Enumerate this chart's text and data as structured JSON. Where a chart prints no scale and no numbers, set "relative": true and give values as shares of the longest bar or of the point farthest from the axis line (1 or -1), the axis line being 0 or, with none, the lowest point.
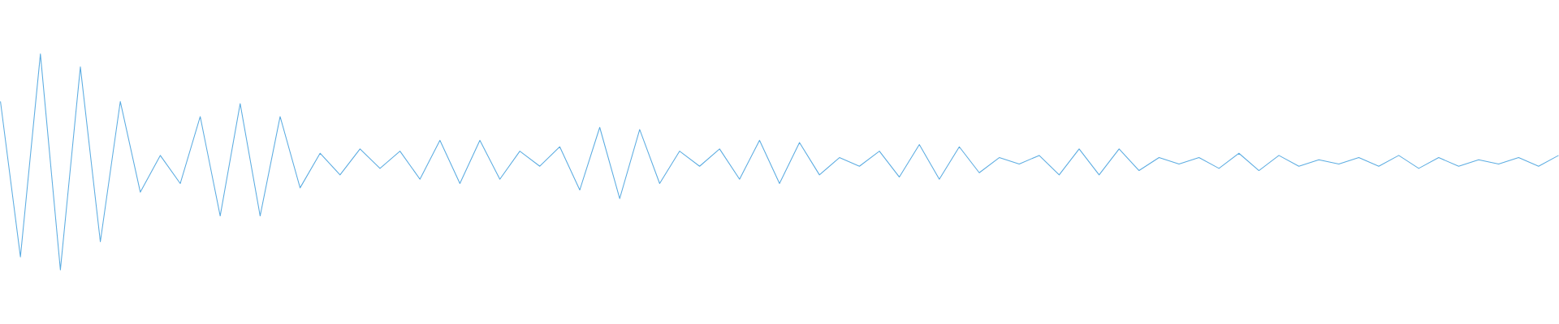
{
  "chart_data": {
    "type": "line",
    "relative": true,
    "color": "#5dade2",
    "marker": "none",
    "categories": [
      null,
      null,
      null,
      null,
      null,
      null,
      null,
      null,
      null,
      null,
      null,
      null,
      null,
      null,
      null,
      null,
      null,
      null,
      null,
      null,
      null,
      null,
      null,
      null,
      null,
      null,
      null,
      null,
      null,
      null,
      null,
      null,
      null,
      null,
      null,
      null,
      null,
      null,
      null,
      null,
      null,
      null,
      null,
      null,
      null,
      null,
      null,
      null,
      null,
      null,
      null,
      null,
      null,
      null,
      null,
      null,
      null,
      null,
      null,
      null,
      null,
      null,
      null,
      null,
      null,
      null,
      null,
      null,
      null,
      null,
      null,
      null,
      null,
      null,
      null,
      null,
      null,
      null,
      null
    ],
    "values": [
      0.78,
      0.06,
      1.0,
      0.0,
      0.94,
      0.13,
      0.78,
      0.36,
      0.53,
      0.4,
      0.71,
      0.25,
      0.77,
      0.25,
      0.71,
      0.38,
      0.54,
      0.44,
      0.56,
      0.47,
      0.55,
      0.42,
      0.6,
      0.4,
      0.6,
      0.42,
      0.55,
      0.48,
      0.57,
      0.37,
      0.66,
      0.33,
      0.65,
      0.4,
      0.55,
      0.48,
      0.56,
      0.42,
      0.6,
      0.4,
      0.59,
      0.44,
      0.52,
      0.48,
      0.55,
      0.43,
      0.58,
      0.42,
      0.57,
      0.45,
      0.52,
      0.49,
      0.53,
      0.44,
      0.56,
      0.44,
      0.56,
      0.46,
      0.52,
      0.49,
      0.52,
      0.47,
      0.54,
      0.46,
      0.53,
      0.48,
      0.51,
      0.49,
      0.52,
      0.48,
      0.53,
      0.47,
      0.52,
      0.48,
      0.51,
      0.49,
      0.52,
      0.48,
      0.53
    ]
  }
}
